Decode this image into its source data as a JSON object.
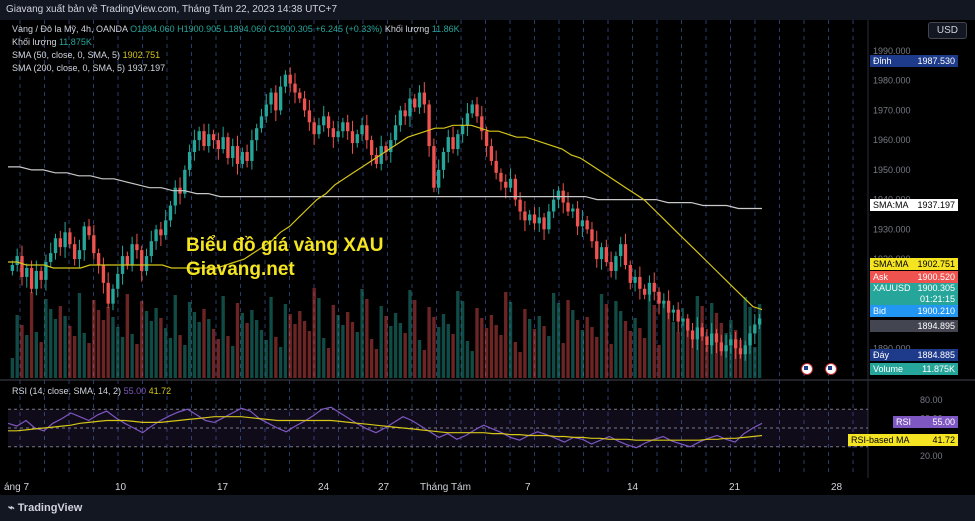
{
  "header": {
    "title": "Giavang xuất bản về TradingView.com, Tháng Tám 22, 2023 14:38 UTC+7",
    "currency": "USD"
  },
  "legend": {
    "symbol": "Vàng / Đô la Mỹ, 4h, OANDA",
    "ohlc": "O1894.060  H1900.905  L1894.060  C1900.305  +6.245 (+0.33%)",
    "volume_label": "Khối lượng",
    "volume_value": "11.86K",
    "volume_label2": "Khối lượng",
    "volume_value2": "11.875K",
    "sma50_label": "SMA (50, close, 0, SMA, 5)",
    "sma50_value": "1902.751",
    "sma200_label": "SMA (200, close, 0, SMA, 5)",
    "sma200_value": "1937.197",
    "rsi_label": "RSI (14, close, SMA, 14, 2)",
    "rsi_value": "55.00",
    "rsi_ma_value": "41.72"
  },
  "watermark": {
    "line1": "Biểu đồ giá vàng XAU",
    "line2": "Giavang.net"
  },
  "price_axis": {
    "ticks": [
      "1990.000",
      "1980.000",
      "1970.000",
      "1960.000",
      "1950.000",
      "1940.000",
      "1930.000",
      "1920.000",
      "1910.000",
      "1890.000"
    ],
    "badges": [
      {
        "label": "Đỉnh",
        "value": "1987.530",
        "color": "#1e3a8a"
      },
      {
        "label": "SMA:MA",
        "value": "1937.197",
        "color": "#ffffff"
      },
      {
        "label": "SMA:MA",
        "value": "1902.751",
        "color": "#f4e422"
      },
      {
        "label": "Ask",
        "value": "1900.520",
        "color": "#ef5350"
      },
      {
        "label": "XAUUSD",
        "value": "1900.305",
        "value2": "01:21:15",
        "color": "#26a69a"
      },
      {
        "label": "Bid",
        "value": "1900.210",
        "color": "#2196f3"
      },
      {
        "label": "",
        "value": "1894.895",
        "color": "#434651"
      },
      {
        "label": "Đáy",
        "value": "1884.885",
        "color": "#1e3a8a"
      },
      {
        "label": "Volume",
        "value": "11.875K",
        "color": "#26a69a"
      }
    ]
  },
  "rsi_axis": {
    "ticks": [
      "80.00",
      "60.00",
      "40.00",
      "20.00"
    ],
    "badges": [
      {
        "label": "RSI",
        "value": "55.00",
        "color": "#7e57c2"
      },
      {
        "label": "RSI-based MA",
        "value": "41.72",
        "color": "#f4e422"
      }
    ]
  },
  "time_axis": [
    "áng 7",
    "10",
    "17",
    "24",
    "27",
    "Tháng Tám",
    "7",
    "14",
    "21",
    "28"
  ],
  "footer": {
    "brand": "TradingView"
  },
  "chart_data": [
    {
      "type": "candlestick",
      "title": "Vàng / Đô la Mỹ, 4h, OANDA",
      "ylim": [
        1880,
        1993
      ],
      "close": [
        1918,
        1921,
        1914,
        1917,
        1910,
        1916,
        1913,
        1919,
        1922,
        1927,
        1924,
        1929,
        1925,
        1920,
        1923,
        1931,
        1928,
        1922,
        1918,
        1912,
        1905,
        1910,
        1915,
        1921,
        1918,
        1925,
        1923,
        1916,
        1921,
        1926,
        1930,
        1928,
        1933,
        1938,
        1944,
        1942,
        1950,
        1956,
        1960,
        1963,
        1958,
        1962,
        1960,
        1957,
        1961,
        1954,
        1958,
        1952,
        1956,
        1953,
        1960,
        1964,
        1968,
        1972,
        1976,
        1970,
        1978,
        1982,
        1979,
        1976,
        1974,
        1970,
        1966,
        1962,
        1965,
        1968,
        1964,
        1961,
        1963,
        1966,
        1963,
        1959,
        1962,
        1965,
        1960,
        1955,
        1952,
        1958,
        1956,
        1960,
        1965,
        1970,
        1968,
        1974,
        1971,
        1976,
        1972,
        1958,
        1944,
        1950,
        1956,
        1961,
        1957,
        1962,
        1965,
        1969,
        1972,
        1968,
        1963,
        1958,
        1953,
        1949,
        1946,
        1944,
        1947,
        1940,
        1936,
        1933,
        1935,
        1932,
        1934,
        1930,
        1936,
        1940,
        1943,
        1939,
        1936,
        1937,
        1931,
        1933,
        1930,
        1926,
        1920,
        1924,
        1919,
        1916,
        1921,
        1925,
        1918,
        1912,
        1914,
        1910,
        1908,
        1912,
        1909,
        1905,
        1906,
        1902,
        1903,
        1899,
        1900,
        1896,
        1893,
        1897,
        1894,
        1891,
        1895,
        1892,
        1889,
        1891,
        1893,
        1890,
        1888,
        1891,
        1895,
        1898,
        1900
      ],
      "sma50": [
        1919,
        1919,
        1918,
        1918,
        1918,
        1917,
        1917,
        1917,
        1917,
        1918,
        1918,
        1918,
        1918,
        1918,
        1918,
        1918,
        1918,
        1918,
        1917,
        1917,
        1917,
        1917,
        1917,
        1917,
        1918,
        1919,
        1920,
        1922,
        1924,
        1926,
        1929,
        1931,
        1934,
        1937,
        1940,
        1942,
        1945,
        1947,
        1949,
        1951,
        1953,
        1955,
        1957,
        1959,
        1961,
        1962,
        1963,
        1964,
        1964,
        1965,
        1965,
        1965,
        1964,
        1963,
        1963,
        1962,
        1961,
        1961,
        1960,
        1959,
        1958,
        1957,
        1955,
        1954,
        1952,
        1950,
        1948,
        1946,
        1944,
        1942,
        1940,
        1937,
        1934,
        1931,
        1928,
        1925,
        1922,
        1919,
        1916,
        1913,
        1910,
        1907,
        1904,
        1903
      ],
      "sma200": [
        1951,
        1951,
        1950,
        1950,
        1949,
        1949,
        1948,
        1948,
        1947,
        1947,
        1946,
        1945,
        1944,
        1944,
        1943,
        1943,
        1942,
        1942,
        1941,
        1941,
        1941,
        1941,
        1941,
        1941,
        1941,
        1941,
        1941,
        1941,
        1941,
        1941,
        1941,
        1941,
        1941,
        1941,
        1941,
        1941,
        1941,
        1941,
        1941,
        1941,
        1941,
        1941,
        1941,
        1941,
        1941,
        1941,
        1941,
        1941,
        1941,
        1941,
        1940,
        1940,
        1940,
        1940,
        1940,
        1940,
        1939,
        1939,
        1939,
        1938,
        1938,
        1938,
        1937,
        1937,
        1937
      ]
    },
    {
      "type": "line",
      "title": "RSI (14, close, SMA, 14, 2)",
      "ylim": [
        0,
        100
      ],
      "rsi": [
        55,
        52,
        58,
        50,
        47,
        55,
        60,
        66,
        62,
        58,
        64,
        68,
        61,
        55,
        50,
        45,
        52,
        58,
        63,
        67,
        70,
        64,
        58,
        56,
        61,
        66,
        71,
        68,
        60,
        55,
        50,
        46,
        52,
        57,
        63,
        70,
        72,
        66,
        60,
        54,
        49,
        45,
        50,
        56,
        62,
        58,
        52,
        46,
        40,
        44,
        38,
        42,
        48,
        53,
        49,
        45,
        40,
        37,
        42,
        46,
        43,
        39,
        35,
        40,
        38,
        33,
        37,
        41,
        36,
        32,
        29,
        34,
        38,
        41,
        36,
        33,
        30,
        35,
        39,
        42,
        38,
        35,
        44,
        50,
        55
      ],
      "rsi_ma": [
        47,
        47,
        48,
        49,
        50,
        51,
        52,
        53,
        55,
        56,
        57,
        58,
        58,
        58,
        57,
        56,
        56,
        56,
        57,
        58,
        59,
        60,
        61,
        62,
        62,
        62,
        62,
        61,
        60,
        59,
        58,
        58,
        58,
        58,
        58,
        58,
        58,
        57,
        56,
        55,
        54,
        53,
        52,
        51,
        50,
        49,
        48,
        47,
        46,
        45,
        45,
        45,
        45,
        45,
        44,
        44,
        43,
        43,
        42,
        42,
        42,
        41,
        41,
        40,
        40,
        39,
        39,
        38,
        38,
        38,
        37,
        37,
        37,
        37,
        37,
        37,
        37,
        37,
        38,
        38,
        39,
        39,
        40,
        41,
        42
      ]
    }
  ]
}
